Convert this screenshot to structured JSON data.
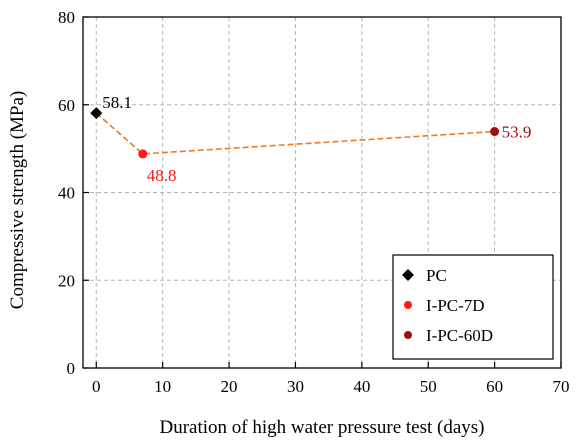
{
  "chart_data": {
    "type": "scatter",
    "xlabel": "Duration of high water pressure test (days)",
    "ylabel": "Compressive strength (MPa)",
    "xlim": [
      -2,
      70
    ],
    "ylim": [
      0,
      80
    ],
    "xticks": [
      0,
      10,
      20,
      30,
      40,
      50,
      60,
      70
    ],
    "yticks": [
      0,
      20,
      40,
      60,
      80
    ],
    "grid": true,
    "legend_position": "bottom-right",
    "connector_line": {
      "style": "dashed",
      "color": "#f07820",
      "points": [
        [
          0,
          58.1
        ],
        [
          7,
          48.8
        ],
        [
          60,
          53.9
        ]
      ]
    },
    "series": [
      {
        "name": "PC",
        "marker": "diamond",
        "color": "#000000",
        "points": [
          {
            "x": 0,
            "y": 58.1,
            "label": "58.1",
            "label_color": "#000000"
          }
        ]
      },
      {
        "name": "I-PC-7D",
        "marker": "circle",
        "color": "#ff1a1a",
        "points": [
          {
            "x": 7,
            "y": 48.8,
            "label": "48.8",
            "label_color": "#ff1a1a"
          }
        ]
      },
      {
        "name": "I-PC-60D",
        "marker": "circle",
        "color": "#a01010",
        "points": [
          {
            "x": 60,
            "y": 53.9,
            "label": "53.9",
            "label_color": "#a01010"
          }
        ]
      }
    ]
  }
}
